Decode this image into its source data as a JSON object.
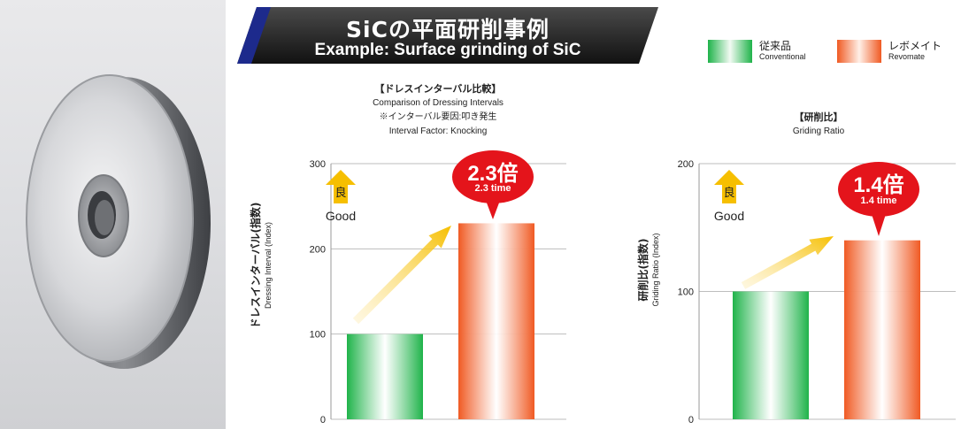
{
  "banner": {
    "title_jp": "SiCの平面研削事例",
    "title_en": "Example: Surface grinding of SiC"
  },
  "legend": [
    {
      "jp": "従来品",
      "en": "Conventional",
      "color": "#1fb34a"
    },
    {
      "jp": "レボメイト",
      "en": "Revomate",
      "color": "#f05a23"
    }
  ],
  "colors": {
    "conventional": "#1fb34a",
    "revomate": "#f05a23",
    "bubble": "#e4141b",
    "good_arrow": "#f6bf00"
  },
  "charts": {
    "dressing": {
      "heading_jp": "【ドレスインターバル比較】",
      "heading_en": "Comparison of Dressing Intervals",
      "note_jp": "※インターバル要因:叩き発生",
      "note_en": "Interval Factor: Knocking",
      "ylabel_jp": "ドレスインターバル(指数)",
      "ylabel_en": "Dressing Interval (Index)",
      "good_jp": "良",
      "good_en": "Good",
      "bubble_big": "2.3倍",
      "bubble_small": "2.3 time"
    },
    "grinding": {
      "heading_jp": "【研削比】",
      "heading_en": "Griding Ratio",
      "ylabel_jp": "研削比(指数)",
      "ylabel_en": "Griding Ratio (Index)",
      "good_jp": "良",
      "good_en": "Good",
      "bubble_big": "1.4倍",
      "bubble_small": "1.4 time"
    }
  },
  "chart_data": [
    {
      "type": "bar",
      "title": "【ドレスインターバル比較】 Comparison of Dressing Intervals",
      "ylabel": "ドレスインターバル(指数) Dressing Interval (Index)",
      "categories": [
        "従来品",
        "レボメイト"
      ],
      "values": [
        100,
        230
      ],
      "ylim": [
        0,
        300
      ],
      "yticks": [
        0,
        100,
        200,
        300
      ],
      "grid": true
    },
    {
      "type": "bar",
      "title": "【研削比】 Griding Ratio",
      "ylabel": "研削比(指数) Griding Ratio (Index)",
      "categories": [
        "従来品",
        "レボメイト"
      ],
      "values": [
        100,
        140
      ],
      "ylim": [
        0,
        200
      ],
      "yticks": [
        0,
        100,
        200
      ],
      "grid": true
    }
  ]
}
